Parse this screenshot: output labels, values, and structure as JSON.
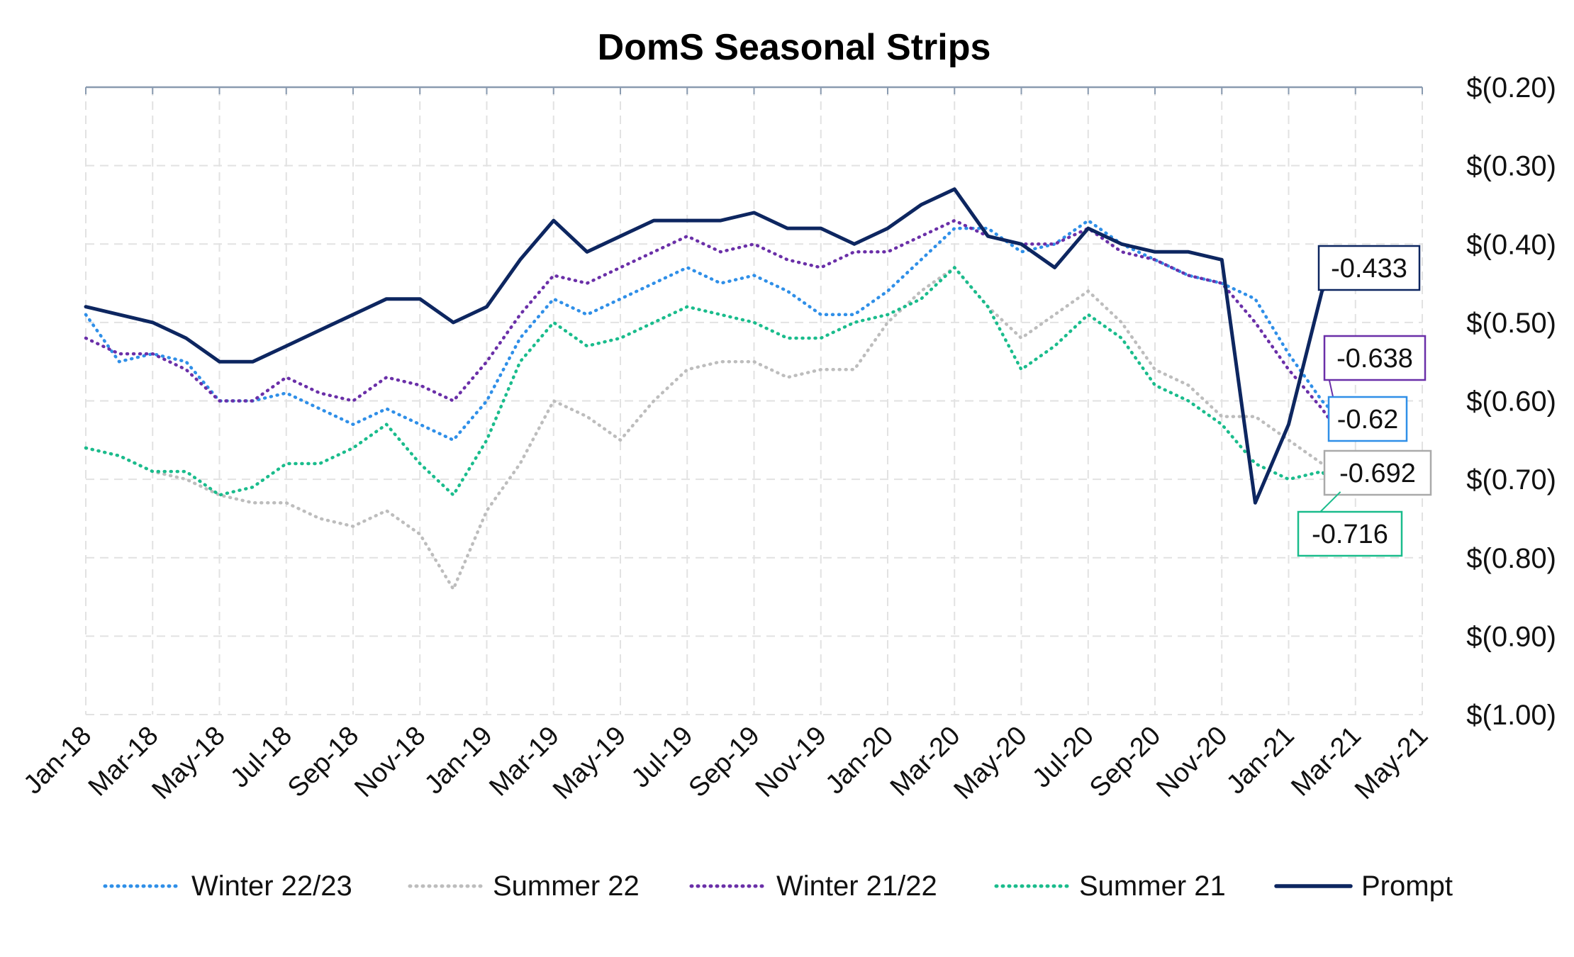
{
  "chart_data": {
    "type": "line",
    "title": "DomS Seasonal Strips",
    "xlabel": "",
    "ylabel": "",
    "x_ticks": [
      "Jan-18",
      "Mar-18",
      "May-18",
      "Jul-18",
      "Sep-18",
      "Nov-18",
      "Jan-19",
      "Mar-19",
      "May-19",
      "Jul-19",
      "Sep-19",
      "Nov-19",
      "Jan-20",
      "Mar-20",
      "May-20",
      "Jul-20",
      "Sep-20",
      "Nov-20",
      "Jan-21",
      "Mar-21",
      "May-21"
    ],
    "y_ticks": [
      "$(0.20)",
      "$(0.30)",
      "$(0.40)",
      "$(0.50)",
      "$(0.60)",
      "$(0.70)",
      "$(0.80)",
      "$(0.90)",
      "$(1.00)"
    ],
    "ylim": [
      -1.0,
      -0.2
    ],
    "y_axis_side": "right",
    "grid": true,
    "legend_position": "bottom",
    "x": [
      "2018-01-01",
      "2018-02-01",
      "2018-03-01",
      "2018-04-01",
      "2018-05-01",
      "2018-06-01",
      "2018-07-01",
      "2018-08-01",
      "2018-09-01",
      "2018-10-01",
      "2018-11-01",
      "2018-12-01",
      "2019-01-01",
      "2019-02-01",
      "2019-03-01",
      "2019-04-01",
      "2019-05-01",
      "2019-06-01",
      "2019-07-01",
      "2019-08-01",
      "2019-09-01",
      "2019-10-01",
      "2019-11-01",
      "2019-12-01",
      "2020-01-01",
      "2020-02-01",
      "2020-03-01",
      "2020-04-01",
      "2020-05-01",
      "2020-06-01",
      "2020-07-01",
      "2020-08-01",
      "2020-09-01",
      "2020-10-01",
      "2020-11-01",
      "2020-12-01",
      "2021-01-01",
      "2021-02-01",
      "2021-02-15"
    ],
    "series": [
      {
        "name": "Winter 22/23",
        "color": "#2f8fe8",
        "style": "dotted",
        "values": [
          -0.49,
          -0.55,
          -0.54,
          -0.55,
          -0.6,
          -0.6,
          -0.59,
          -0.61,
          -0.63,
          -0.61,
          -0.63,
          -0.65,
          -0.6,
          -0.52,
          -0.47,
          -0.49,
          -0.47,
          -0.45,
          -0.43,
          -0.45,
          -0.44,
          -0.46,
          -0.49,
          -0.49,
          -0.46,
          -0.42,
          -0.38,
          -0.38,
          -0.41,
          -0.4,
          -0.37,
          -0.4,
          -0.42,
          -0.44,
          -0.45,
          -0.47,
          -0.54,
          -0.6,
          -0.62
        ]
      },
      {
        "name": "Summer 22",
        "color": "#bdbdbd",
        "style": "dotted",
        "values": [
          -0.66,
          -0.67,
          -0.69,
          -0.7,
          -0.72,
          -0.73,
          -0.73,
          -0.75,
          -0.76,
          -0.74,
          -0.77,
          -0.84,
          -0.74,
          -0.68,
          -0.6,
          -0.62,
          -0.65,
          -0.6,
          -0.56,
          -0.55,
          -0.55,
          -0.57,
          -0.56,
          -0.56,
          -0.5,
          -0.46,
          -0.43,
          -0.48,
          -0.52,
          -0.49,
          -0.46,
          -0.5,
          -0.56,
          -0.58,
          -0.62,
          -0.62,
          -0.65,
          -0.68,
          -0.692
        ]
      },
      {
        "name": "Winter 21/22",
        "color": "#6a2fa8",
        "style": "dotted",
        "values": [
          -0.52,
          -0.54,
          -0.54,
          -0.56,
          -0.6,
          -0.6,
          -0.57,
          -0.59,
          -0.6,
          -0.57,
          -0.58,
          -0.6,
          -0.55,
          -0.49,
          -0.44,
          -0.45,
          -0.43,
          -0.41,
          -0.39,
          -0.41,
          -0.4,
          -0.42,
          -0.43,
          -0.41,
          -0.41,
          -0.39,
          -0.37,
          -0.39,
          -0.4,
          -0.4,
          -0.38,
          -0.41,
          -0.42,
          -0.44,
          -0.45,
          -0.5,
          -0.56,
          -0.61,
          -0.638
        ]
      },
      {
        "name": "Summer 21",
        "color": "#1abc8c",
        "style": "dotted",
        "values": [
          -0.66,
          -0.67,
          -0.69,
          -0.69,
          -0.72,
          -0.71,
          -0.68,
          -0.68,
          -0.66,
          -0.63,
          -0.68,
          -0.72,
          -0.65,
          -0.55,
          -0.5,
          -0.53,
          -0.52,
          -0.5,
          -0.48,
          -0.49,
          -0.5,
          -0.52,
          -0.52,
          -0.5,
          -0.49,
          -0.47,
          -0.43,
          -0.48,
          -0.56,
          -0.53,
          -0.49,
          -0.52,
          -0.58,
          -0.6,
          -0.63,
          -0.68,
          -0.7,
          -0.69,
          -0.716
        ]
      },
      {
        "name": "Prompt",
        "color": "#0d2660",
        "style": "solid",
        "values": [
          -0.48,
          -0.49,
          -0.5,
          -0.52,
          -0.55,
          -0.55,
          -0.53,
          -0.51,
          -0.49,
          -0.47,
          -0.47,
          -0.5,
          -0.48,
          -0.42,
          -0.37,
          -0.41,
          -0.39,
          -0.37,
          -0.37,
          -0.37,
          -0.36,
          -0.38,
          -0.38,
          -0.4,
          -0.38,
          -0.35,
          -0.33,
          -0.39,
          -0.4,
          -0.43,
          -0.38,
          -0.4,
          -0.41,
          -0.41,
          -0.42,
          -0.73,
          -0.63,
          -0.46,
          -0.433
        ]
      }
    ],
    "end_labels": [
      "-0.433",
      "-0.638",
      "-0.62",
      "-0.692",
      "-0.716"
    ]
  }
}
